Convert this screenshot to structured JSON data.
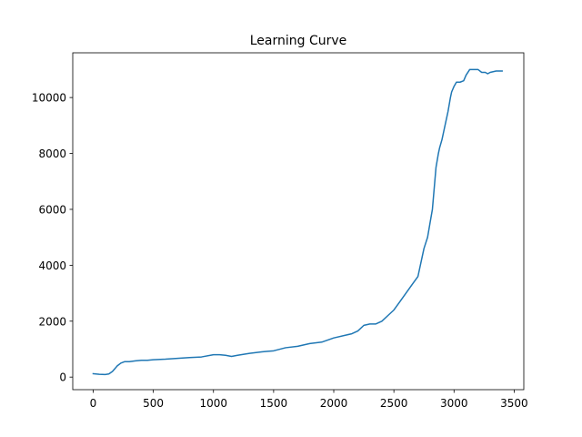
{
  "chart_data": {
    "type": "line",
    "title": "Learning Curve",
    "xlabel": "",
    "ylabel": "",
    "xlim": [
      -170,
      3580
    ],
    "ylim": [
      -450,
      11600
    ],
    "x_ticks": [
      0,
      500,
      1000,
      1500,
      2000,
      2500,
      3000,
      3500
    ],
    "y_ticks": [
      0,
      2000,
      4000,
      6000,
      8000,
      10000
    ],
    "grid": false,
    "line_color": "#1f77b4",
    "series": [
      {
        "x": [
          0,
          50,
          100,
          130,
          160,
          180,
          200,
          230,
          260,
          300,
          350,
          400,
          450,
          500,
          600,
          700,
          800,
          900,
          1000,
          1050,
          1100,
          1150,
          1200,
          1300,
          1400,
          1450,
          1500,
          1600,
          1700,
          1750,
          1800,
          1900,
          2000,
          2100,
          2150,
          2200,
          2250,
          2300,
          2350,
          2400,
          2450,
          2500,
          2550,
          2600,
          2650,
          2700,
          2720,
          2750,
          2780,
          2800,
          2820,
          2850,
          2870,
          2880,
          2900,
          2920,
          2950,
          2970,
          2980,
          3000,
          3020,
          3050,
          3080,
          3100,
          3130,
          3150,
          3200,
          3230,
          3260,
          3280,
          3300,
          3350,
          3400
        ],
        "values": [
          120,
          100,
          90,
          110,
          200,
          300,
          400,
          500,
          550,
          550,
          580,
          600,
          600,
          620,
          640,
          670,
          700,
          720,
          800,
          800,
          780,
          740,
          780,
          850,
          900,
          920,
          940,
          1050,
          1100,
          1150,
          1200,
          1250,
          1400,
          1500,
          1550,
          1650,
          1850,
          1900,
          1900,
          2000,
          2200,
          2400,
          2700,
          3000,
          3300,
          3600,
          4000,
          4600,
          5000,
          5500,
          6000,
          7500,
          8000,
          8200,
          8500,
          8900,
          9500,
          10000,
          10200,
          10400,
          10550,
          10550,
          10600,
          10800,
          11000,
          11000,
          11000,
          10900,
          10900,
          10850,
          10900,
          10950,
          10950
        ]
      }
    ]
  }
}
